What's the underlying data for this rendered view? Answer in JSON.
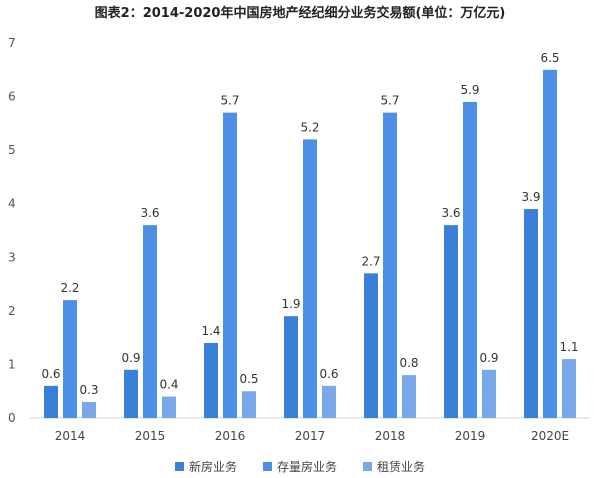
{
  "chart_data": {
    "type": "bar",
    "title": "图表2：2014-2020年中国房地产经纪细分业务交易额(单位：万亿元)",
    "categories": [
      "2014",
      "2015",
      "2016",
      "2017",
      "2018",
      "2019",
      "2020E"
    ],
    "series": [
      {
        "name": "新房业务",
        "color": "#3a7fd8",
        "values": [
          0.6,
          0.9,
          1.4,
          1.9,
          2.7,
          3.6,
          3.9
        ]
      },
      {
        "name": "存量房业务",
        "color": "#4d8fe6",
        "values": [
          2.2,
          3.6,
          5.7,
          5.2,
          5.7,
          5.9,
          6.5
        ]
      },
      {
        "name": "租赁业务",
        "color": "#7aa9ea",
        "values": [
          0.3,
          0.4,
          0.5,
          0.6,
          0.8,
          0.9,
          1.1
        ]
      }
    ],
    "yticks": [
      "0",
      "1",
      "2",
      "3",
      "4",
      "5",
      "6",
      "7"
    ],
    "ylim": [
      0,
      7
    ],
    "grid": false,
    "legend_position": "bottom"
  }
}
